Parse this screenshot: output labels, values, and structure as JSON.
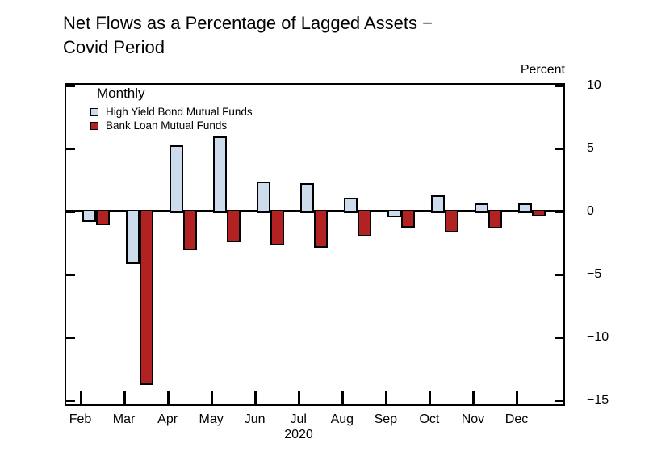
{
  "title": {
    "line1": "Net Flows as a Percentage of Lagged Assets −",
    "line2": "Covid Period"
  },
  "axis": {
    "unit_label": "Percent",
    "y_ticks": [
      10,
      5,
      0,
      -5,
      -10,
      -15
    ],
    "x_year": "2020"
  },
  "legend": {
    "heading": "Monthly",
    "items": [
      {
        "label": "High Yield Bond Mutual Funds",
        "color": "#ccdcec"
      },
      {
        "label": "Bank Loan Mutual Funds",
        "color": "#b22222"
      }
    ]
  },
  "chart_data": {
    "type": "bar",
    "title": "Net Flows as a Percentage of Lagged Assets − Covid Period",
    "frequency": "Monthly",
    "xlabel": "2020",
    "ylabel": "Percent",
    "ylim": [
      -15.6,
      10.2
    ],
    "grid": false,
    "legend_position": "top-left",
    "categories": [
      "Feb",
      "Mar",
      "Apr",
      "May",
      "Jun",
      "Jul",
      "Aug",
      "Sep",
      "Oct",
      "Nov",
      "Dec"
    ],
    "series": [
      {
        "name": "High Yield Bond Mutual Funds",
        "color": "#ccdcec",
        "values": [
          -0.8,
          -4.1,
          5.2,
          5.9,
          2.3,
          2.2,
          1.0,
          -0.4,
          1.2,
          0.6,
          0.6
        ]
      },
      {
        "name": "Bank Loan Mutual Funds",
        "color": "#b22222",
        "values": [
          -1.0,
          -13.7,
          -3.0,
          -2.4,
          -2.6,
          -2.8,
          -1.9,
          -1.2,
          -1.6,
          -1.3,
          -0.3
        ]
      }
    ]
  }
}
